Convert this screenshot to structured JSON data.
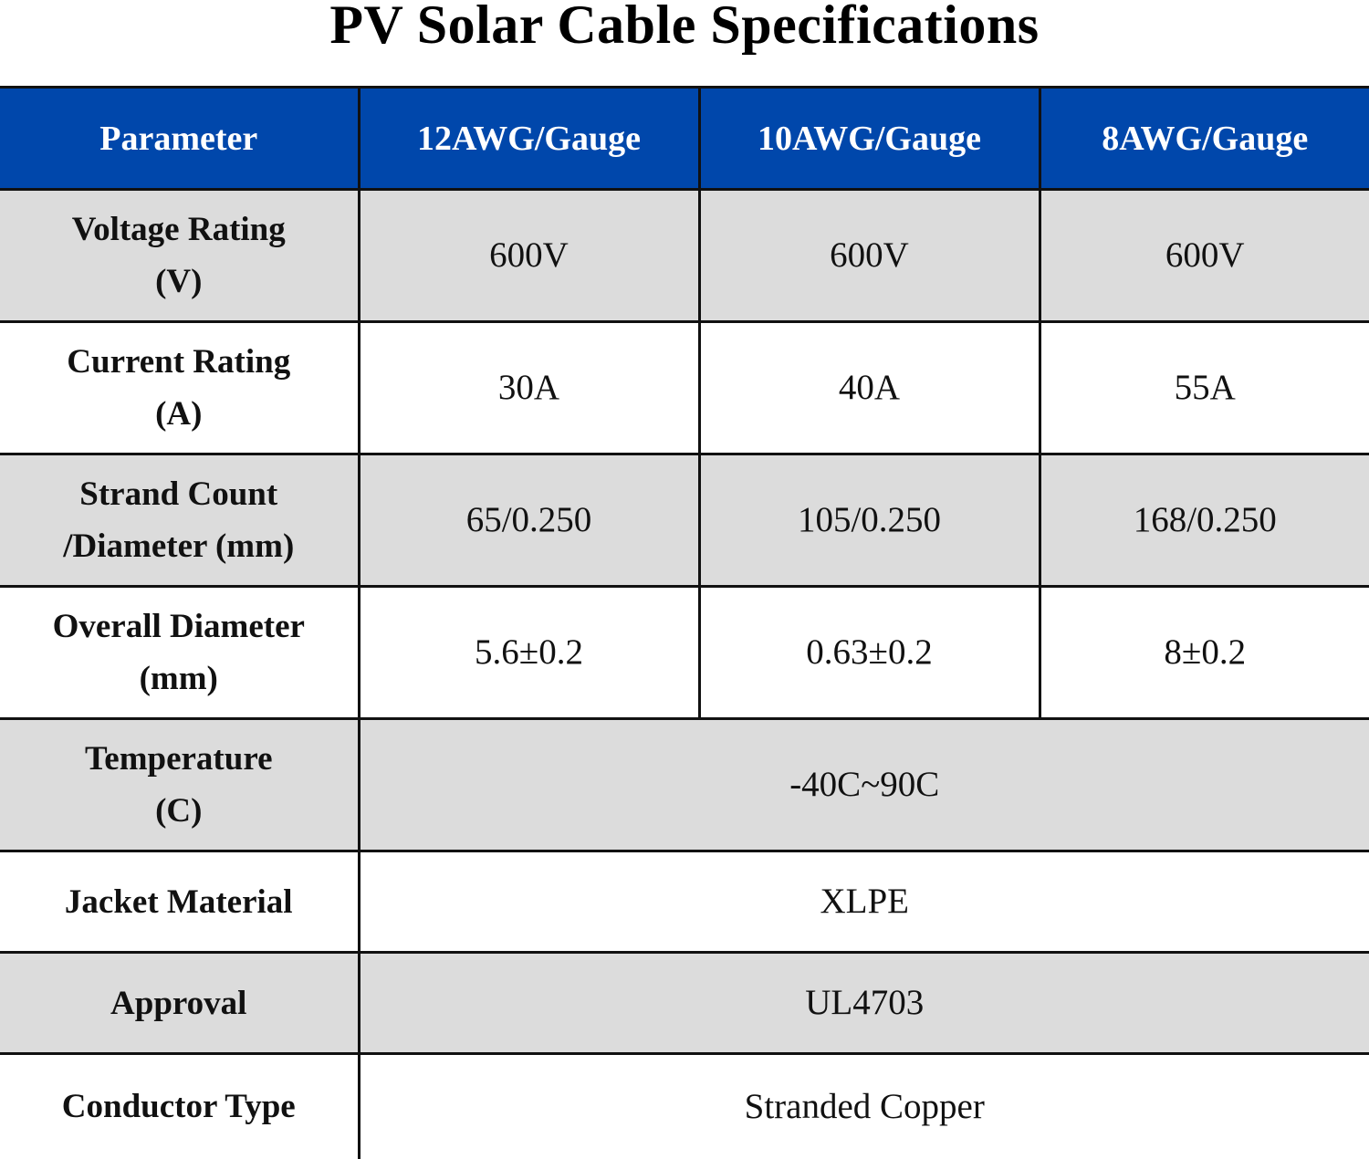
{
  "title": "PV Solar Cable Specifications",
  "colors": {
    "header_bg": "#0047ab",
    "header_text": "#ffffff",
    "shaded_row": "#dcdcdc",
    "plain_row": "#ffffff",
    "border": "#111111"
  },
  "table": {
    "headers": [
      "Parameter",
      "12AWG/Gauge",
      "10AWG/Gauge",
      "8AWG/Gauge"
    ],
    "rows": [
      {
        "param": [
          "Voltage Rating",
          "(V)"
        ],
        "values": [
          "600V",
          "600V",
          "600V"
        ]
      },
      {
        "param": [
          "Current Rating",
          "(A)"
        ],
        "values": [
          "30A",
          "40A",
          "55A"
        ]
      },
      {
        "param": [
          "Strand Count",
          "/Diameter (mm)"
        ],
        "values": [
          "65/0.250",
          "105/0.250",
          "168/0.250"
        ]
      },
      {
        "param": [
          "Overall Diameter",
          "(mm)"
        ],
        "values": [
          "5.6±0.2",
          "0.63±0.2",
          "8±0.2"
        ]
      },
      {
        "param": [
          "Temperature",
          "(C)"
        ],
        "values": [
          "-40C~90C"
        ]
      },
      {
        "param": [
          "Jacket Material"
        ],
        "values": [
          "XLPE"
        ]
      },
      {
        "param": [
          "Approval"
        ],
        "values": [
          "UL4703"
        ]
      },
      {
        "param": [
          "Conductor Type"
        ],
        "values": [
          "Stranded Copper"
        ]
      }
    ]
  }
}
